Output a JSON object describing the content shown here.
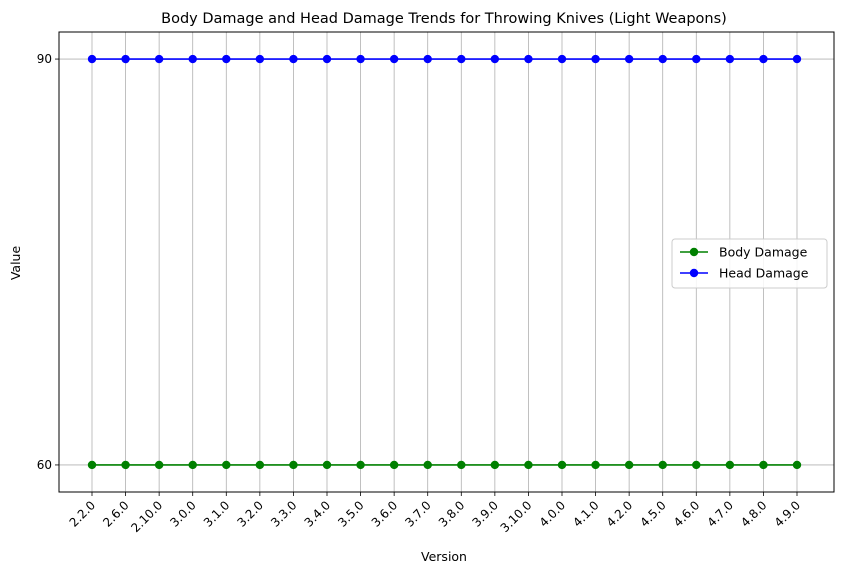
{
  "chart_data": {
    "type": "line",
    "title": "Body Damage and Head Damage Trends for Throwing Knives (Light Weapons)",
    "xlabel": "Version",
    "ylabel": "Value",
    "categories": [
      "2.2.0",
      "2.6.0",
      "2.10.0",
      "3.0.0",
      "3.1.0",
      "3.2.0",
      "3.3.0",
      "3.4.0",
      "3.5.0",
      "3.6.0",
      "3.7.0",
      "3.8.0",
      "3.9.0",
      "3.10.0",
      "4.0.0",
      "4.1.0",
      "4.2.0",
      "4.5.0",
      "4.6.0",
      "4.7.0",
      "4.8.0",
      "4.9.0"
    ],
    "yticks": [
      60,
      90
    ],
    "ylim": [
      58,
      92.0
    ],
    "grid": true,
    "legend_position": "center-right",
    "series": [
      {
        "name": "Body Damage",
        "color": "#008000",
        "values": [
          60,
          60,
          60,
          60,
          60,
          60,
          60,
          60,
          60,
          60,
          60,
          60,
          60,
          60,
          60,
          60,
          60,
          60,
          60,
          60,
          60,
          60
        ]
      },
      {
        "name": "Head Damage",
        "color": "#0000ff",
        "values": [
          90,
          90,
          90,
          90,
          90,
          90,
          90,
          90,
          90,
          90,
          90,
          90,
          90,
          90,
          90,
          90,
          90,
          90,
          90,
          90,
          90,
          90
        ]
      }
    ]
  }
}
